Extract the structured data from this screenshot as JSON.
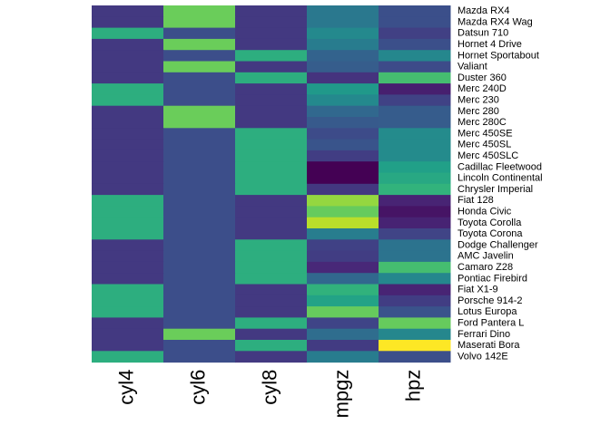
{
  "chart_data": {
    "type": "heatmap",
    "title": "",
    "xlabel": "",
    "ylabel": "",
    "columns": [
      "cyl4",
      "cyl6",
      "cyl8",
      "mpgz",
      "hpz"
    ],
    "rows": [
      "Mazda RX4",
      "Mazda RX4 Wag",
      "Datsun 710",
      "Hornet 4 Drive",
      "Hornet Sportabout",
      "Valiant",
      "Duster 360",
      "Merc 240D",
      "Merc 230",
      "Merc 280",
      "Merc 280C",
      "Merc 450SE",
      "Merc 450SL",
      "Merc 450SLC",
      "Cadillac Fleetwood",
      "Lincoln Continental",
      "Chrysler Imperial",
      "Fiat 128",
      "Honda Civic",
      "Toyota Corolla",
      "Toyota Corona",
      "Dodge Challenger",
      "AMC Javelin",
      "Camaro Z28",
      "Pontiac Firebird",
      "Fiat X1-9",
      "Porsche 914-2",
      "Lotus Europa",
      "Ford Pantera L",
      "Ferrari Dino",
      "Maserati Bora",
      "Volvo 142E"
    ],
    "values": [
      [
        -0.88,
        1.75,
        -0.88,
        0.15,
        -0.54
      ],
      [
        -0.88,
        1.75,
        -0.88,
        0.15,
        -0.54
      ],
      [
        1.12,
        -0.56,
        -0.88,
        0.45,
        -0.78
      ],
      [
        -0.88,
        1.75,
        -0.88,
        0.22,
        -0.54
      ],
      [
        -0.88,
        -0.56,
        1.12,
        -0.23,
        0.41
      ],
      [
        -0.88,
        1.75,
        -0.88,
        -0.33,
        -0.61
      ],
      [
        -0.88,
        -0.56,
        1.12,
        -0.96,
        1.43
      ],
      [
        1.12,
        -0.56,
        -0.88,
        0.72,
        -1.24
      ],
      [
        1.12,
        -0.56,
        -0.88,
        0.45,
        -0.75
      ],
      [
        -0.88,
        1.75,
        -0.88,
        -0.15,
        -0.35
      ],
      [
        -0.88,
        1.75,
        -0.88,
        -0.38,
        -0.35
      ],
      [
        -0.88,
        -0.56,
        1.12,
        -0.61,
        0.49
      ],
      [
        -0.88,
        -0.56,
        1.12,
        -0.47,
        0.49
      ],
      [
        -0.88,
        -0.56,
        1.12,
        -0.81,
        0.49
      ],
      [
        -0.88,
        -0.56,
        1.12,
        -1.61,
        0.85
      ],
      [
        -0.88,
        -0.56,
        1.12,
        -1.61,
        1.0
      ],
      [
        -0.88,
        -0.56,
        1.12,
        -0.89,
        1.22
      ],
      [
        1.12,
        -0.56,
        -0.88,
        2.04,
        -1.18
      ],
      [
        1.12,
        -0.56,
        -0.88,
        1.71,
        -1.38
      ],
      [
        1.12,
        -0.56,
        -0.88,
        2.29,
        -1.19
      ],
      [
        1.12,
        -0.56,
        -0.88,
        0.23,
        -0.72
      ],
      [
        -0.88,
        -0.56,
        1.12,
        -0.76,
        0.05
      ],
      [
        -0.88,
        -0.56,
        1.12,
        -0.81,
        0.05
      ],
      [
        -0.88,
        -0.56,
        1.12,
        -1.13,
        1.43
      ],
      [
        -0.88,
        -0.56,
        1.12,
        -0.15,
        0.41
      ],
      [
        1.12,
        -0.56,
        -0.88,
        1.2,
        -1.18
      ],
      [
        1.12,
        -0.56,
        -0.88,
        0.91,
        -0.81
      ],
      [
        1.12,
        -0.56,
        -0.88,
        1.71,
        -0.49
      ],
      [
        -0.88,
        -0.56,
        1.12,
        -0.71,
        1.71
      ],
      [
        -0.88,
        1.75,
        -0.88,
        -0.06,
        0.41
      ],
      [
        -0.88,
        -0.56,
        1.12,
        -0.84,
        2.75
      ],
      [
        1.12,
        -0.56,
        -0.88,
        0.22,
        -0.55
      ]
    ],
    "value_range": [
      -1.61,
      2.75
    ],
    "colormap": "viridis",
    "colormap_stops": [
      "#440154",
      "#482878",
      "#3e4989",
      "#31688e",
      "#26828e",
      "#1f9e89",
      "#35b779",
      "#6ece58",
      "#b5de2b",
      "#fde725"
    ],
    "grid": false,
    "legend": "none"
  }
}
